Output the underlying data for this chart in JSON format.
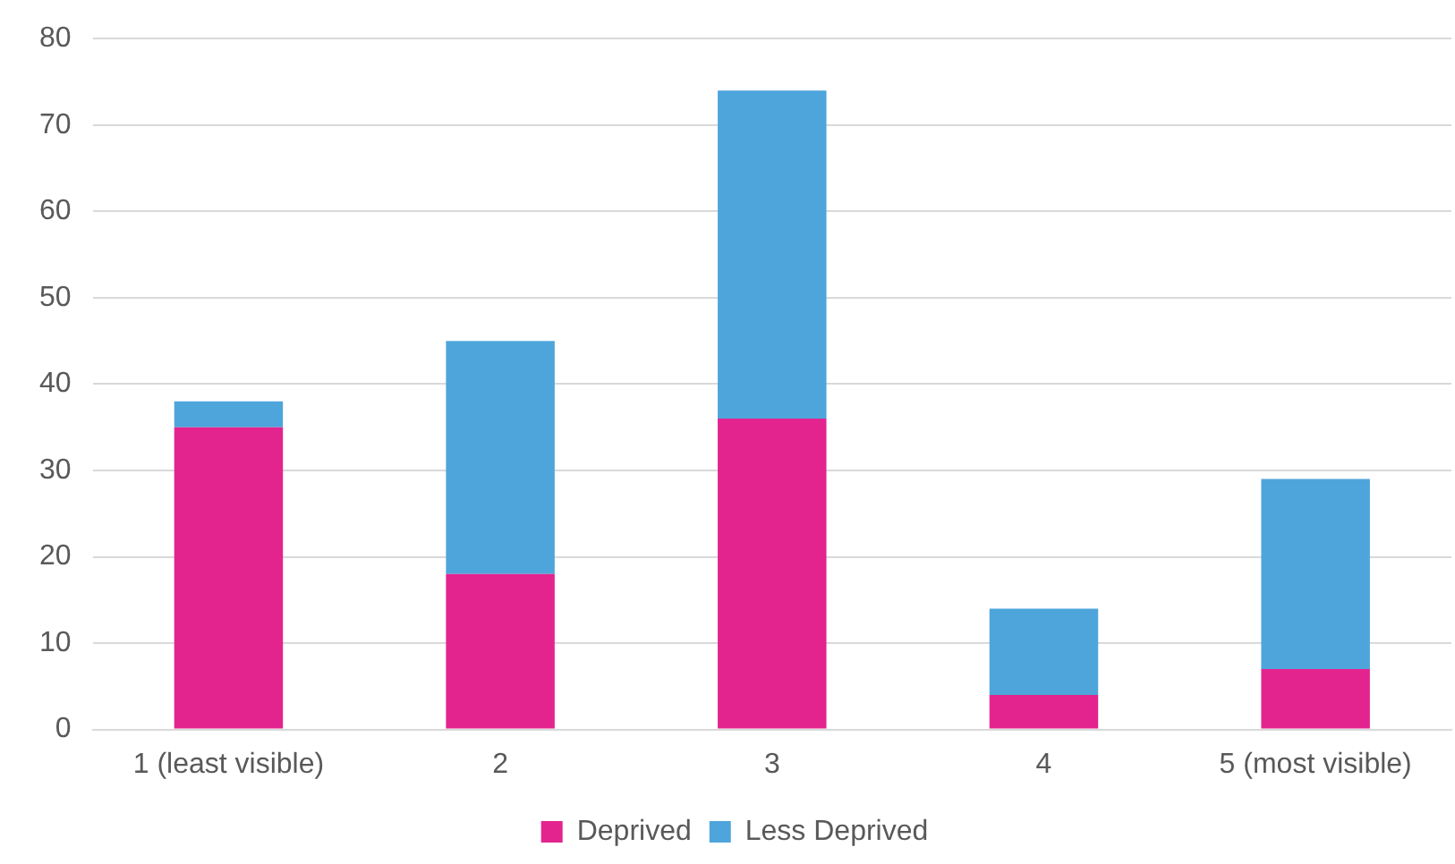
{
  "chart_data": {
    "type": "bar",
    "stacked": true,
    "categories": [
      "1 (least visible)",
      "2",
      "3",
      "4",
      "5 (most visible)"
    ],
    "series": [
      {
        "name": "Deprived",
        "color": "#e3248f",
        "values": [
          35,
          18,
          36,
          4,
          7
        ]
      },
      {
        "name": "Less Deprived",
        "color": "#4ea5dc",
        "values": [
          3,
          27,
          38,
          10,
          22
        ]
      }
    ],
    "ylim": [
      0,
      80
    ],
    "yticks": [
      0,
      10,
      20,
      30,
      40,
      50,
      60,
      70,
      80
    ],
    "grid": "y",
    "legend": "bottom"
  }
}
